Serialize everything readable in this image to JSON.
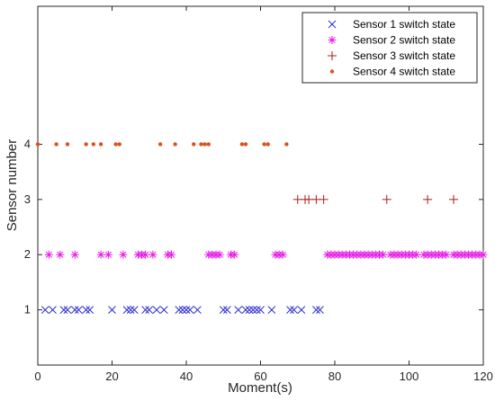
{
  "chart_data": {
    "type": "scatter",
    "xlabel": "Moment(s)",
    "ylabel": "Sensor number",
    "xlim": [
      0,
      120
    ],
    "ylim": [
      0,
      6.5
    ],
    "xticks": [
      0,
      20,
      40,
      60,
      80,
      100,
      120
    ],
    "yticks": [
      1,
      2,
      3,
      4
    ],
    "grid": false,
    "legend_position": "top-right",
    "series": [
      {
        "name": "Sensor 1 switch state",
        "marker": "x",
        "color": "#2e2ecc",
        "y": 1,
        "x": [
          2,
          4,
          7,
          8,
          10,
          11,
          13,
          14,
          20,
          24,
          25,
          26,
          29,
          30,
          32,
          34,
          38,
          39,
          40,
          41,
          43,
          50,
          51,
          54,
          56,
          57,
          58,
          59,
          60,
          63,
          68,
          69,
          71,
          75,
          76
        ]
      },
      {
        "name": "Sensor 2 switch state",
        "marker": "asterisk",
        "color": "#e61ae6",
        "y": 2,
        "x": [
          3,
          6,
          10,
          17,
          19,
          23,
          27,
          28,
          29,
          31,
          35,
          36,
          46,
          47,
          48,
          49,
          52,
          53,
          64,
          65,
          66,
          78,
          79,
          80,
          81,
          82,
          83,
          84,
          85,
          86,
          87,
          88,
          89,
          90,
          91,
          92,
          93,
          95,
          96,
          97,
          98,
          99,
          100,
          101,
          102,
          104,
          105,
          106,
          107,
          108,
          109,
          110,
          112,
          113,
          114,
          115,
          116,
          117,
          118,
          119,
          120
        ]
      },
      {
        "name": "Sensor 3 switch state",
        "marker": "plus",
        "color": "#a81c1c",
        "y": 3,
        "x": [
          70,
          72,
          73,
          75,
          77,
          94,
          105,
          112
        ]
      },
      {
        "name": "Sensor 4 switch state",
        "marker": "dot",
        "color": "#d9531e",
        "y": 4,
        "x": [
          0,
          5,
          8,
          13,
          15,
          17,
          21,
          22,
          33,
          37,
          42,
          44,
          45,
          46,
          55,
          56,
          61,
          62,
          67
        ]
      }
    ]
  }
}
